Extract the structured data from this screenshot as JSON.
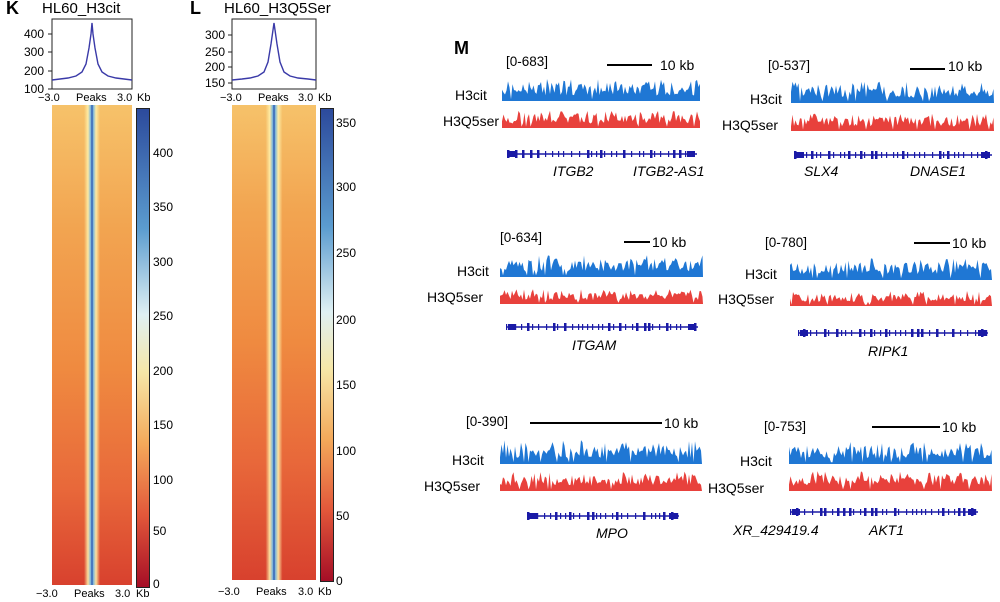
{
  "panels": {
    "K": {
      "letter": "K",
      "title": "HL60_H3cit",
      "profile_ticks": [
        "400",
        "300",
        "200",
        "100"
      ],
      "x_left": "−3.0",
      "x_mid": "Peaks",
      "x_right": "3.0",
      "x_unit": "Kb",
      "bottom_left": "−3.0",
      "bottom_mid": "Peaks",
      "bottom_right": "3.0",
      "bottom_unit": "Kb",
      "colorbar_ticks": [
        "400",
        "350",
        "300",
        "250",
        "200",
        "150",
        "100",
        "50",
        "0"
      ]
    },
    "L": {
      "letter": "L",
      "title": "HL60_H3Q5Ser",
      "profile_ticks": [
        "300",
        "250",
        "200",
        "150",
        "100"
      ],
      "x_left": "−3.0",
      "x_mid": "Peaks",
      "x_right": "3.0",
      "x_unit": "Kb",
      "bottom_left": "−3.0",
      "bottom_mid": "Peaks",
      "bottom_right": "3.0",
      "bottom_unit": "Kb",
      "colorbar_ticks": [
        "350",
        "300",
        "250",
        "200",
        "150",
        "100",
        "50",
        "0"
      ]
    },
    "M": {
      "letter": "M"
    }
  },
  "tracks": [
    {
      "range": "[0-683]",
      "scale": "10 kb",
      "label1": "H3cit",
      "label2": "H3Q5ser",
      "genes": [
        "ITGB2",
        "ITGB2-AS1"
      ]
    },
    {
      "range": "[0-537]",
      "scale": "10 kb",
      "label1": "H3cit",
      "label2": "H3Q5ser",
      "genes": [
        "SLX4",
        "DNASE1"
      ]
    },
    {
      "range": "[0-634]",
      "scale": "10 kb",
      "label1": "H3cit",
      "label2": "H3Q5ser",
      "genes": [
        "ITGAM"
      ]
    },
    {
      "range": "[0-780]",
      "scale": "10 kb",
      "label1": "H3cit",
      "label2": "H3Q5ser",
      "genes": [
        "RIPK1"
      ]
    },
    {
      "range": "[0-390]",
      "scale": "10 kb",
      "label1": "H3cit",
      "label2": "H3Q5ser",
      "genes": [
        "MPO"
      ]
    },
    {
      "range": "[0-753]",
      "scale": "10 kb",
      "label1": "H3cit",
      "label2": "H3Q5ser",
      "genes": [
        "XR_429419.4",
        "AKT1"
      ]
    }
  ],
  "colors": {
    "blue": "#1f77d4",
    "red": "#e8413c",
    "gene": "#1a1aa6",
    "profile": "#3a3aa8"
  }
}
